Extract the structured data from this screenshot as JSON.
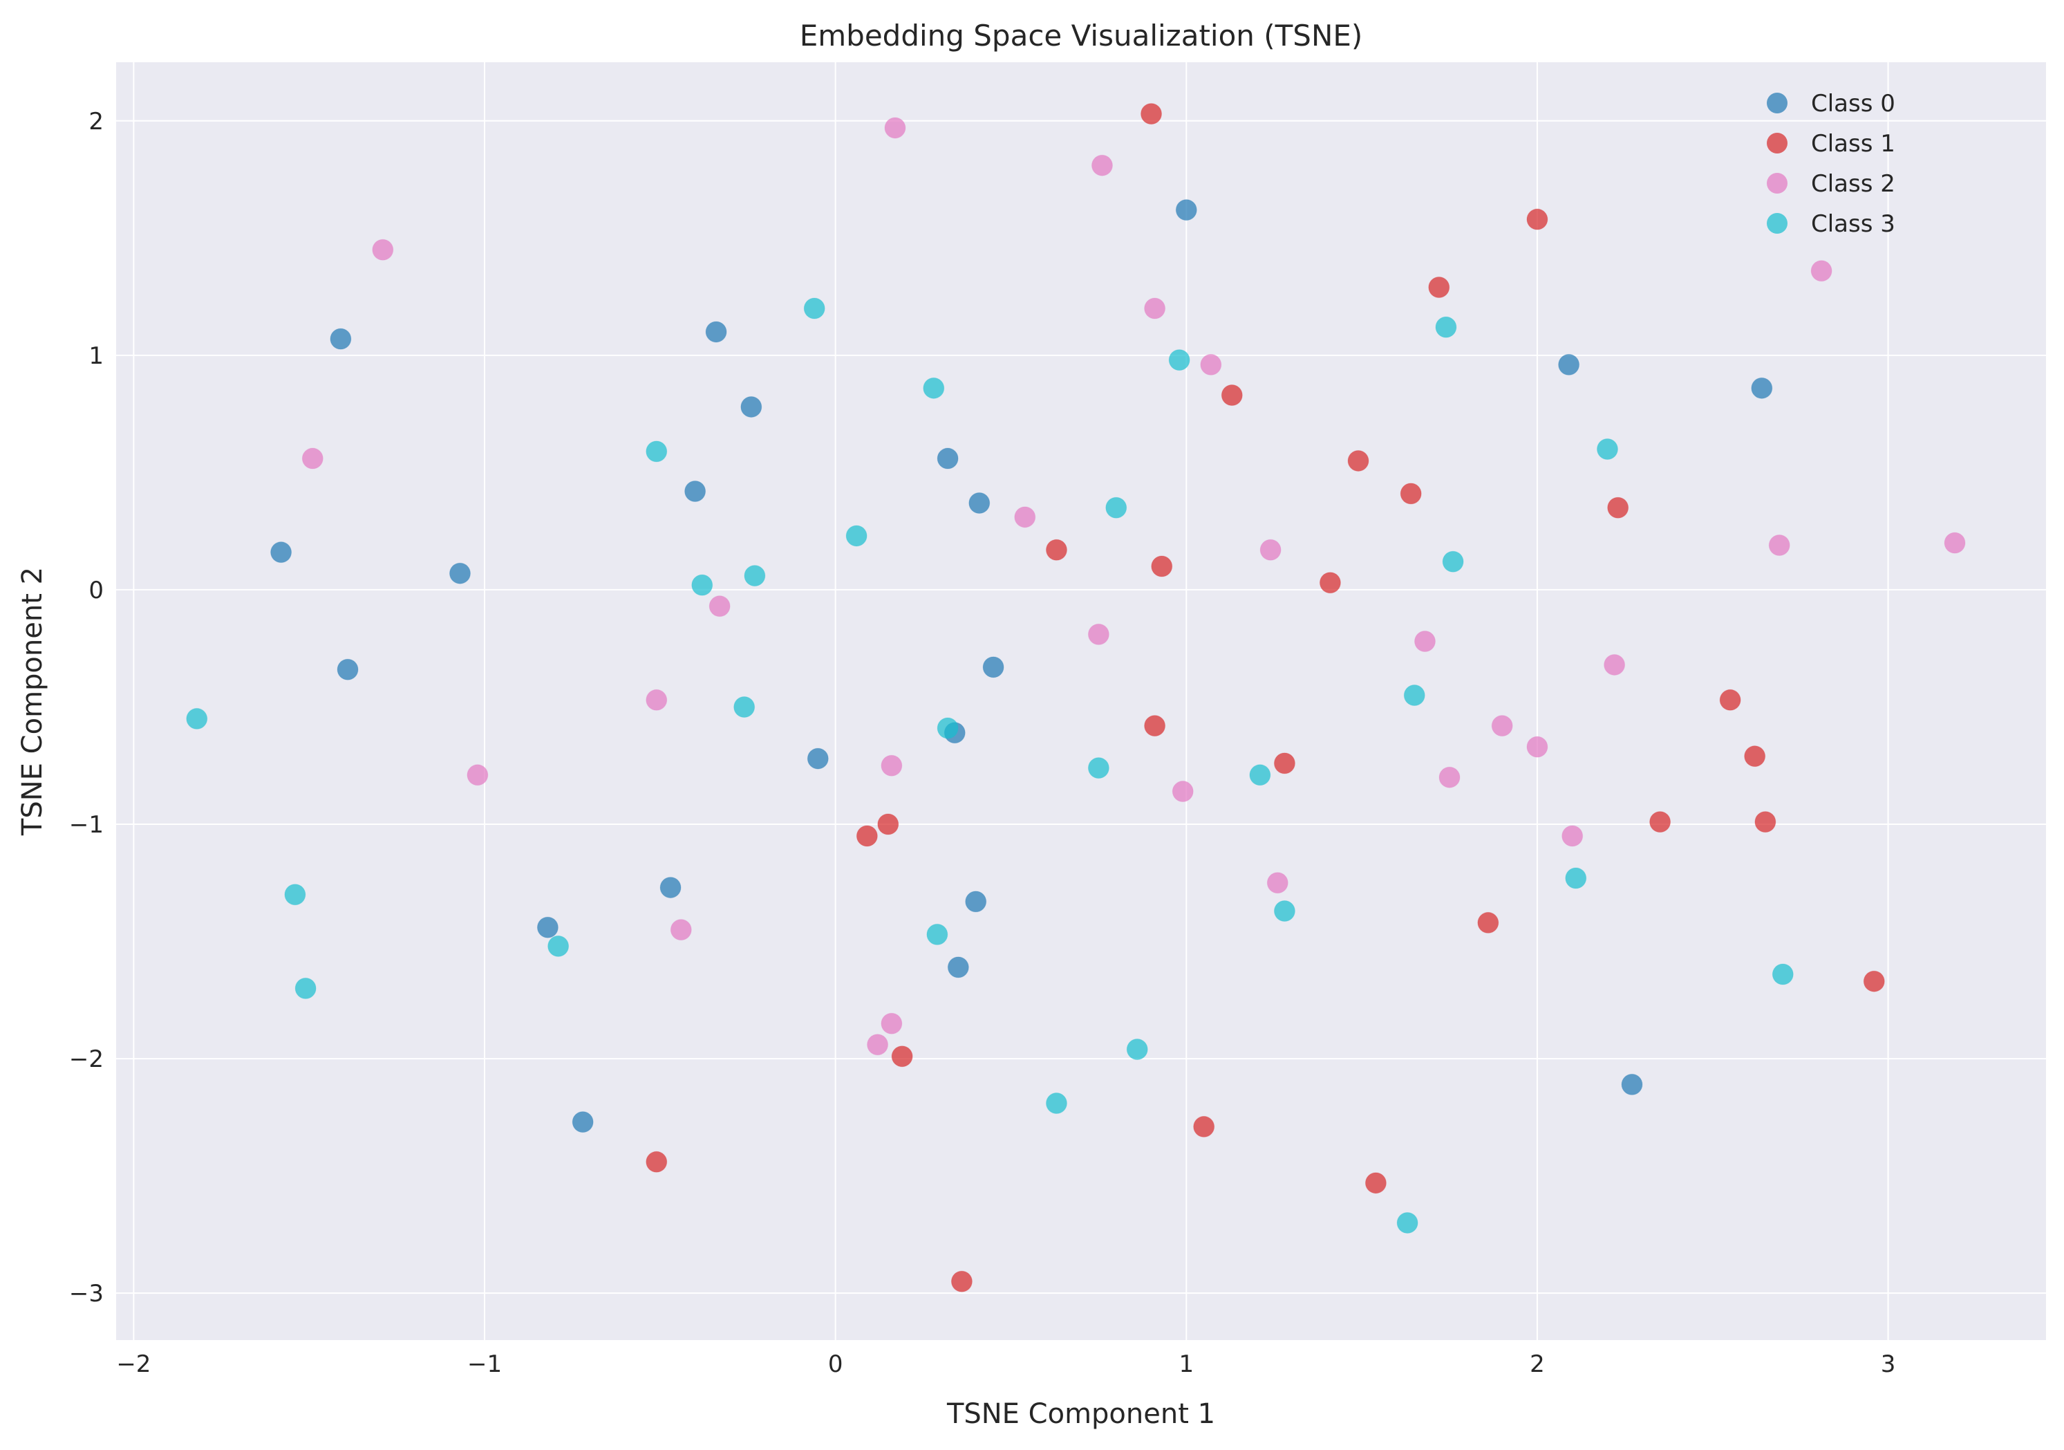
{
  "chart_data": {
    "type": "scatter",
    "title": "Embedding Space Visualization (TSNE)",
    "xlabel": "TSNE Component 1",
    "ylabel": "TSNE Component 2",
    "xlim": [
      -2.05,
      3.45
    ],
    "ylim": [
      -3.2,
      2.25
    ],
    "xticks": [
      -2,
      -1,
      0,
      1,
      2,
      3
    ],
    "xtick_labels": [
      "−2",
      "−1",
      "0",
      "1",
      "2",
      "3"
    ],
    "yticks": [
      -3,
      -2,
      -1,
      0,
      1,
      2
    ],
    "ytick_labels": [
      "−3",
      "−2",
      "−1",
      "0",
      "1",
      "2"
    ],
    "grid": true,
    "legend_position": "top-right",
    "series": [
      {
        "name": "Class 0",
        "color": "#1f77b4",
        "points": [
          [
            1.0,
            1.62
          ],
          [
            -1.41,
            1.07
          ],
          [
            -0.34,
            1.1
          ],
          [
            -0.24,
            0.78
          ],
          [
            2.09,
            0.96
          ],
          [
            2.64,
            0.86
          ],
          [
            0.32,
            0.56
          ],
          [
            -0.4,
            0.42
          ],
          [
            0.41,
            0.37
          ],
          [
            -1.58,
            0.16
          ],
          [
            -1.07,
            0.07
          ],
          [
            -1.39,
            -0.34
          ],
          [
            0.45,
            -0.33
          ],
          [
            -0.05,
            -0.72
          ],
          [
            0.34,
            -0.61
          ],
          [
            -0.47,
            -1.27
          ],
          [
            -0.82,
            -1.44
          ],
          [
            0.4,
            -1.33
          ],
          [
            0.35,
            -1.61
          ],
          [
            -0.72,
            -2.27
          ],
          [
            2.27,
            -2.11
          ]
        ]
      },
      {
        "name": "Class 1",
        "color": "#d62728",
        "points": [
          [
            0.9,
            2.03
          ],
          [
            2.0,
            1.58
          ],
          [
            1.72,
            1.29
          ],
          [
            1.13,
            0.83
          ],
          [
            1.49,
            0.55
          ],
          [
            1.64,
            0.41
          ],
          [
            2.23,
            0.35
          ],
          [
            0.63,
            0.17
          ],
          [
            0.93,
            0.1
          ],
          [
            1.41,
            0.03
          ],
          [
            2.55,
            -0.47
          ],
          [
            0.91,
            -0.58
          ],
          [
            2.62,
            -0.71
          ],
          [
            1.28,
            -0.74
          ],
          [
            0.09,
            -1.05
          ],
          [
            0.15,
            -1.0
          ],
          [
            2.35,
            -0.99
          ],
          [
            2.65,
            -0.99
          ],
          [
            1.86,
            -1.42
          ],
          [
            2.96,
            -1.67
          ],
          [
            0.19,
            -1.99
          ],
          [
            1.05,
            -2.29
          ],
          [
            -0.51,
            -2.44
          ],
          [
            1.54,
            -2.53
          ],
          [
            0.36,
            -2.95
          ]
        ]
      },
      {
        "name": "Class 2",
        "color": "#e377c2",
        "points": [
          [
            0.17,
            1.97
          ],
          [
            0.76,
            1.81
          ],
          [
            -1.29,
            1.45
          ],
          [
            0.91,
            1.2
          ],
          [
            2.81,
            1.36
          ],
          [
            1.07,
            0.96
          ],
          [
            -1.49,
            0.56
          ],
          [
            0.54,
            0.31
          ],
          [
            1.24,
            0.17
          ],
          [
            2.69,
            0.19
          ],
          [
            3.19,
            0.2
          ],
          [
            -0.33,
            -0.07
          ],
          [
            0.75,
            -0.19
          ],
          [
            1.68,
            -0.22
          ],
          [
            2.22,
            -0.32
          ],
          [
            -0.51,
            -0.47
          ],
          [
            1.9,
            -0.58
          ],
          [
            2.0,
            -0.67
          ],
          [
            0.16,
            -0.75
          ],
          [
            -1.02,
            -0.79
          ],
          [
            1.75,
            -0.8
          ],
          [
            0.99,
            -0.86
          ],
          [
            2.1,
            -1.05
          ],
          [
            1.26,
            -1.25
          ],
          [
            -0.44,
            -1.45
          ],
          [
            0.16,
            -1.85
          ],
          [
            0.12,
            -1.94
          ]
        ]
      },
      {
        "name": "Class 3",
        "color": "#17becf",
        "points": [
          [
            -0.06,
            1.2
          ],
          [
            1.74,
            1.12
          ],
          [
            0.28,
            0.86
          ],
          [
            0.98,
            0.98
          ],
          [
            -0.51,
            0.59
          ],
          [
            2.2,
            0.6
          ],
          [
            0.8,
            0.35
          ],
          [
            0.06,
            0.23
          ],
          [
            1.76,
            0.12
          ],
          [
            -0.38,
            0.02
          ],
          [
            -0.23,
            0.06
          ],
          [
            -1.82,
            -0.55
          ],
          [
            -0.26,
            -0.5
          ],
          [
            0.32,
            -0.59
          ],
          [
            1.65,
            -0.45
          ],
          [
            0.75,
            -0.76
          ],
          [
            1.21,
            -0.79
          ],
          [
            -1.54,
            -1.3
          ],
          [
            -0.79,
            -1.52
          ],
          [
            0.29,
            -1.47
          ],
          [
            1.28,
            -1.37
          ],
          [
            2.11,
            -1.23
          ],
          [
            -1.51,
            -1.7
          ],
          [
            2.7,
            -1.64
          ],
          [
            0.86,
            -1.96
          ],
          [
            0.63,
            -2.19
          ],
          [
            1.63,
            -2.7
          ]
        ]
      }
    ]
  }
}
